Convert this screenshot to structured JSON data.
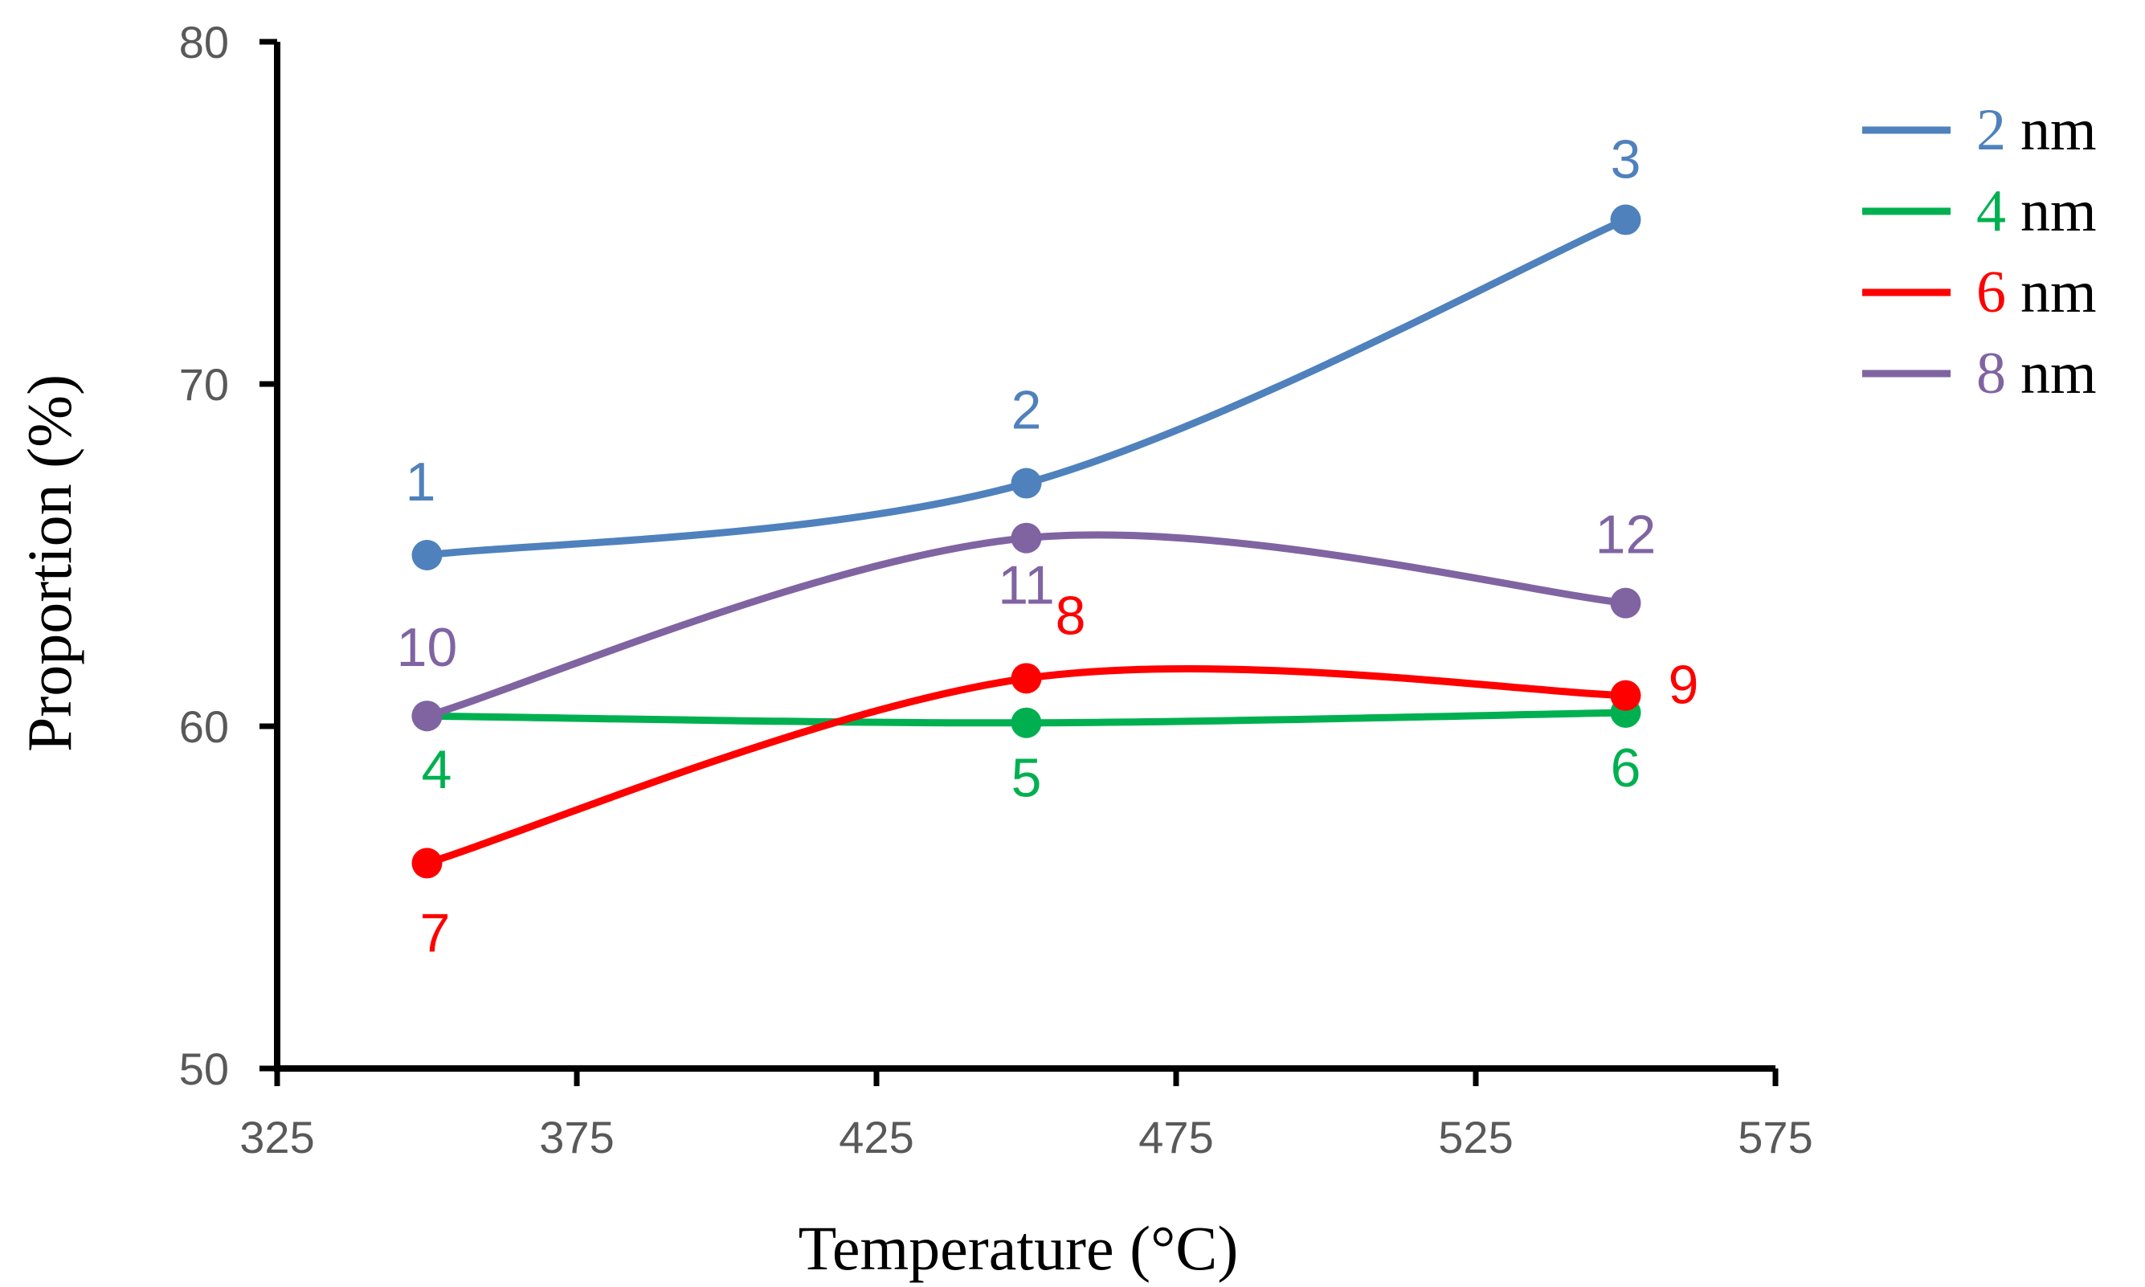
{
  "chart_data": {
    "type": "line",
    "title": "",
    "xlabel": "Temperature (°C)",
    "ylabel": "Proportion (%)",
    "xlim": [
      325,
      575
    ],
    "ylim": [
      50,
      80
    ],
    "x_ticks": [
      "325",
      "375",
      "425",
      "475",
      "525",
      "575"
    ],
    "y_ticks": [
      "50",
      "60",
      "70",
      "80"
    ],
    "x": [
      350,
      450,
      550
    ],
    "grid": false,
    "legend_position": "top-right",
    "series": [
      {
        "name": "2 nm",
        "legend_number": "2",
        "legend_unit": "nm",
        "color": "#4F81BD",
        "values": [
          65.0,
          67.1,
          74.8
        ],
        "point_labels": [
          "1",
          "2",
          "3"
        ]
      },
      {
        "name": "4 nm",
        "legend_number": "4",
        "legend_unit": "nm",
        "color": "#00B050",
        "values": [
          60.3,
          60.1,
          60.4
        ],
        "point_labels": [
          "4",
          "5",
          "6"
        ]
      },
      {
        "name": "6 nm",
        "legend_number": "6",
        "legend_unit": "nm",
        "color": "#FF0000",
        "values": [
          56.0,
          61.4,
          60.9
        ],
        "point_labels": [
          "7",
          "8",
          "9"
        ]
      },
      {
        "name": "8 nm",
        "legend_number": "8",
        "legend_unit": "nm",
        "color": "#8064A2",
        "values": [
          60.3,
          65.5,
          63.6
        ],
        "point_labels": [
          "10",
          "11",
          "12"
        ]
      }
    ]
  }
}
